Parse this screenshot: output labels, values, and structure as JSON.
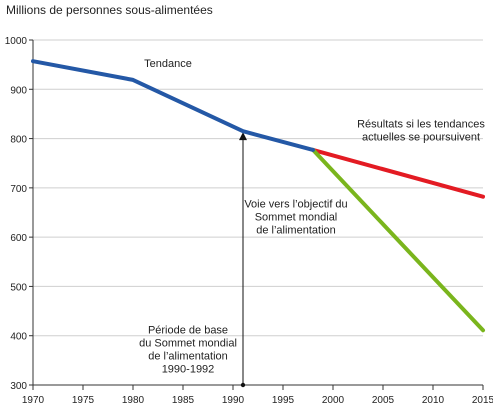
{
  "chart_data": {
    "type": "line",
    "ylabel": "Millions de personnes sous-alimentées",
    "xlim": [
      1970,
      2015
    ],
    "ylim": [
      300,
      1000
    ],
    "xticks": [
      1970,
      1975,
      1980,
      1985,
      1990,
      1995,
      2000,
      2005,
      2010,
      2015
    ],
    "yticks": [
      300,
      400,
      500,
      600,
      700,
      800,
      900,
      1000
    ],
    "grid": "horizontal",
    "series": [
      {
        "name": "Tendance",
        "color": "#2458a6",
        "points": [
          [
            1970,
            957
          ],
          [
            1980,
            919
          ],
          [
            1991,
            815
          ],
          [
            1998,
            777
          ]
        ]
      },
      {
        "name": "",
        "color": "#e31b23",
        "points": [
          [
            1998,
            777
          ],
          [
            2015,
            682
          ]
        ]
      },
      {
        "name": "",
        "color": "#7ab51d",
        "points": [
          [
            1998,
            777
          ],
          [
            2015,
            411
          ]
        ]
      }
    ],
    "annotations": [
      {
        "id": "tendance",
        "lines": [
          "Tendance"
        ],
        "x": 1983.5,
        "y": 945,
        "anchor": "middle"
      },
      {
        "id": "resultats",
        "lines": [
          "Résultats si les tendances",
          "actuelles se poursuivent"
        ],
        "x": 2008.8,
        "y": 822,
        "anchor": "middle"
      },
      {
        "id": "voie",
        "lines": [
          "Voie vers l’objectif du",
          "Sommet mondial",
          "de l’alimentation"
        ],
        "x": 1996.3,
        "y": 660,
        "anchor": "middle"
      },
      {
        "id": "periode",
        "lines": [
          "Période de base",
          "du Sommet mondial",
          "de l’alimentation",
          "1990-1992"
        ],
        "x": 1985.5,
        "y": 405,
        "anchor": "middle"
      }
    ],
    "arrow": {
      "x": 1991,
      "from": 300,
      "to": 815
    }
  }
}
